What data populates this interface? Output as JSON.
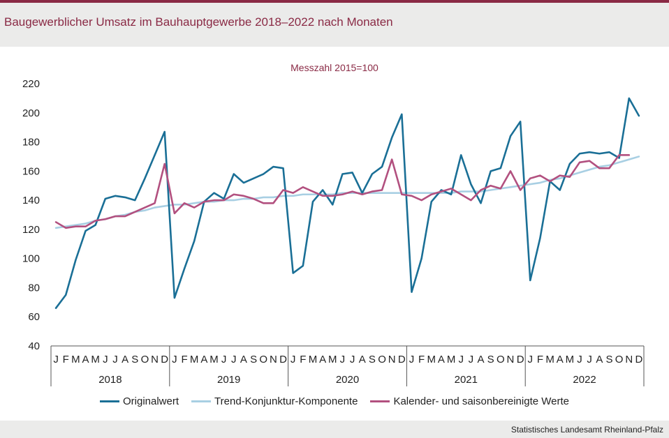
{
  "title": "Baugewerblicher Umsatz im Bauhauptgewerbe 2018–2022 nach Monaten",
  "source": "Statistisches Landesamt Rheinland-Pfalz",
  "colors": {
    "brand": "#8a2a45",
    "original": "#1a6f96",
    "trend": "#a8cfe3",
    "seasonal": "#b2507f"
  },
  "chart_data": {
    "type": "line",
    "subtitle": "Messzahl 2015=100",
    "ylim": [
      40,
      220
    ],
    "yticks": [
      40,
      60,
      80,
      100,
      120,
      140,
      160,
      180,
      200,
      220
    ],
    "month_labels": [
      "J",
      "F",
      "M",
      "A",
      "M",
      "J",
      "J",
      "A",
      "S",
      "O",
      "N",
      "D"
    ],
    "years": [
      "2018",
      "2019",
      "2020",
      "2021",
      "2022"
    ],
    "legend_position": "bottom",
    "series": [
      {
        "name": "Originalwert",
        "color": "#1a6f96",
        "values": [
          66,
          75,
          99,
          119,
          123,
          141,
          143,
          142,
          140,
          155,
          171,
          187,
          73,
          93,
          112,
          139,
          145,
          141,
          158,
          152,
          155,
          158,
          163,
          162,
          90,
          95,
          139,
          147,
          137,
          158,
          159,
          145,
          158,
          163,
          183,
          199,
          77,
          100,
          139,
          147,
          144,
          171,
          151,
          138,
          160,
          162,
          184,
          194,
          85,
          114,
          153,
          147,
          165,
          172,
          173,
          172,
          173,
          169,
          210,
          198
        ]
      },
      {
        "name": "Trend-Konjunktur-Komponente",
        "color": "#a8cfe3",
        "values": [
          121,
          122,
          123,
          124,
          126,
          127,
          129,
          130,
          132,
          133,
          135,
          136,
          137,
          137,
          138,
          139,
          139,
          140,
          140,
          141,
          141,
          142,
          142,
          143,
          143,
          144,
          144,
          144,
          144,
          145,
          145,
          145,
          145,
          145,
          145,
          145,
          145,
          145,
          145,
          145,
          145,
          146,
          146,
          146,
          147,
          148,
          149,
          150,
          151,
          152,
          154,
          155,
          157,
          159,
          161,
          163,
          164,
          166,
          168,
          170
        ]
      },
      {
        "name": "Kalender- und saisonbereinigte Werte",
        "color": "#b2507f",
        "values": [
          125,
          121,
          122,
          122,
          126,
          127,
          129,
          129,
          132,
          135,
          138,
          165,
          131,
          138,
          135,
          139,
          140,
          140,
          144,
          143,
          141,
          138,
          138,
          147,
          145,
          149,
          146,
          143,
          143,
          144,
          146,
          144,
          146,
          147,
          168,
          144,
          143,
          140,
          144,
          146,
          148,
          144,
          140,
          147,
          150,
          148,
          160,
          147,
          155,
          157,
          153,
          157,
          156,
          166,
          167,
          162,
          162,
          171,
          171,
          null
        ]
      }
    ]
  }
}
